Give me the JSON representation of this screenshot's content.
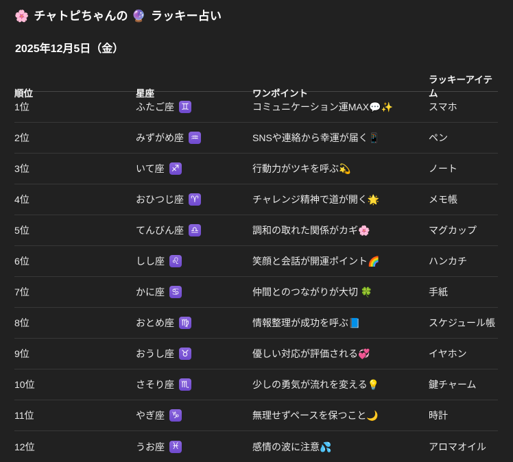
{
  "header": {
    "flower_emoji": "🌸",
    "title_main": "チャトピちゃんの",
    "crystal_ball_emoji": "🔮",
    "title_suffix": "ラッキー占い",
    "date": "2025年12月5日（金）"
  },
  "table": {
    "columns": {
      "rank": "順位",
      "sign": "星座",
      "point": "ワンポイント",
      "item": "ラッキーアイテム"
    },
    "rows": [
      {
        "rank": "1位",
        "sign": "ふたご座",
        "symbol": "♊",
        "point": "コミュニケーション運MAX💬✨",
        "item": "スマホ"
      },
      {
        "rank": "2位",
        "sign": "みずがめ座",
        "symbol": "♒",
        "point": "SNSや連絡から幸運が届く📱",
        "item": "ペン"
      },
      {
        "rank": "3位",
        "sign": "いて座",
        "symbol": "♐",
        "point": "行動力がツキを呼ぶ💫",
        "item": "ノート"
      },
      {
        "rank": "4位",
        "sign": "おひつじ座",
        "symbol": "♈",
        "point": "チャレンジ精神で道が開く🌟",
        "item": "メモ帳"
      },
      {
        "rank": "5位",
        "sign": "てんびん座",
        "symbol": "♎",
        "point": "調和の取れた関係がカギ🌸",
        "item": "マグカップ"
      },
      {
        "rank": "6位",
        "sign": "しし座",
        "symbol": "♌",
        "point": "笑顔と会話が開運ポイント🌈",
        "item": "ハンカチ"
      },
      {
        "rank": "7位",
        "sign": "かに座",
        "symbol": "♋",
        "point": "仲間とのつながりが大切 🍀",
        "item": "手紙"
      },
      {
        "rank": "8位",
        "sign": "おとめ座",
        "symbol": "♍",
        "point": "情報整理が成功を呼ぶ📘",
        "item": "スケジュール帳"
      },
      {
        "rank": "9位",
        "sign": "おうし座",
        "symbol": "♉",
        "point": "優しい対応が評価される💞",
        "item": "イヤホン"
      },
      {
        "rank": "10位",
        "sign": "さそり座",
        "symbol": "♏",
        "point": "少しの勇気が流れを変える💡",
        "item": "鍵チャーム"
      },
      {
        "rank": "11位",
        "sign": "やぎ座",
        "symbol": "♑",
        "point": "無理せずペースを保つこと🌙",
        "item": "時計"
      },
      {
        "rank": "12位",
        "sign": "うお座",
        "symbol": "♓",
        "point": "感情の波に注意💦",
        "item": "アロマオイル"
      }
    ]
  },
  "colors": {
    "background": "#212121",
    "text": "#ececec",
    "heading": "#ffffff",
    "header_divider": "#474747",
    "row_divider": "#383838",
    "zodiac_badge": "#7d5bd3"
  }
}
